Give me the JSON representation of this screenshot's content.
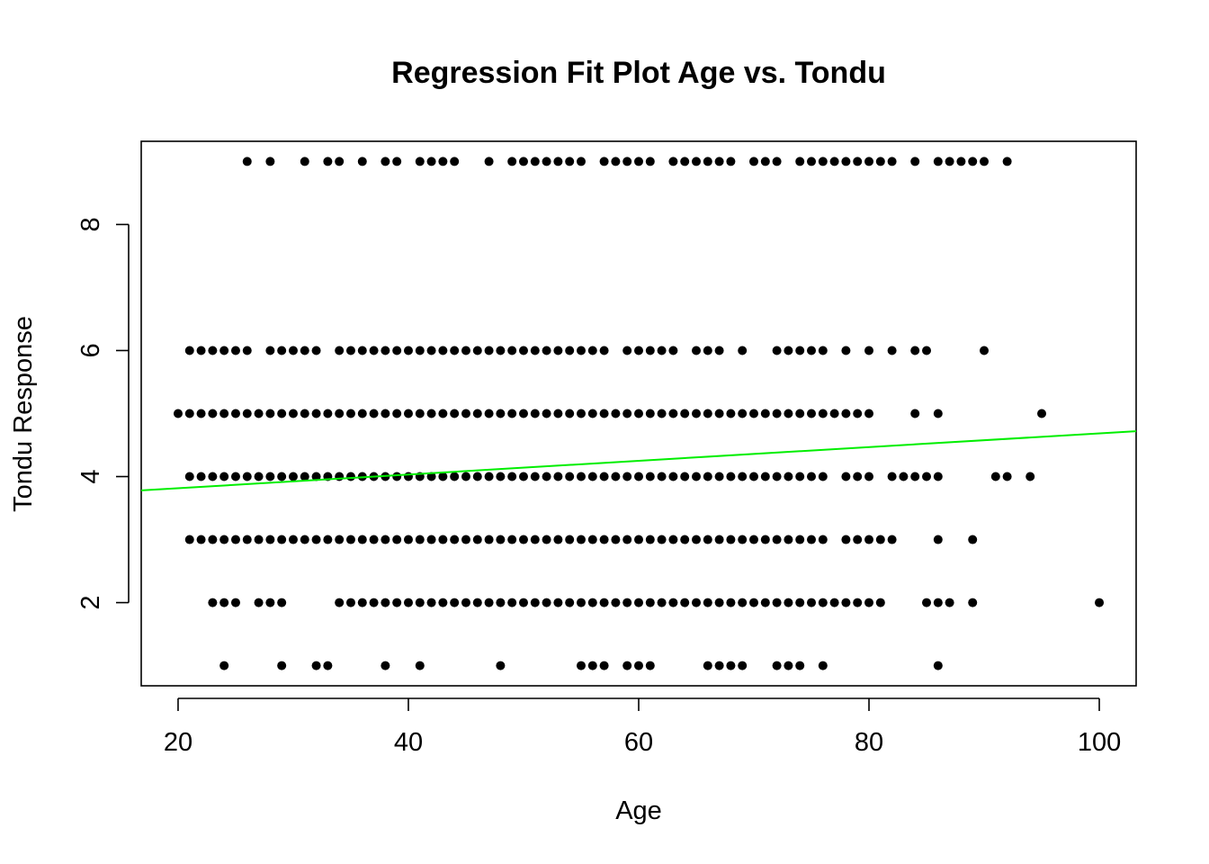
{
  "chart_data": {
    "type": "scatter",
    "title": "Regression Fit Plot Age vs. Tondu",
    "xlabel": "Age",
    "ylabel": "Tondu Response",
    "xlim": [
      16.8,
      103.2
    ],
    "ylim": [
      0.68,
      9.32
    ],
    "x_ticks": [
      20,
      40,
      60,
      80,
      100
    ],
    "y_ticks": [
      2,
      4,
      6,
      8
    ],
    "grid": false,
    "legend": "none",
    "point_color": "#000000",
    "fit_line": {
      "color": "#00ee00",
      "x": [
        16.8,
        103.2
      ],
      "y": [
        3.78,
        4.72
      ]
    },
    "rows": [
      {
        "y": 9,
        "x": [
          26,
          28,
          31,
          33,
          34,
          36,
          38,
          39,
          41,
          42,
          43,
          44,
          47,
          49,
          50,
          51,
          52,
          53,
          54,
          55,
          57,
          58,
          59,
          60,
          61,
          63,
          64,
          65,
          66,
          67,
          68,
          70,
          71,
          72,
          74,
          75,
          76,
          77,
          78,
          79,
          80,
          81,
          82,
          84,
          86,
          87,
          88,
          89,
          90,
          92
        ]
      },
      {
        "y": 6,
        "x": [
          21,
          22,
          23,
          24,
          25,
          26,
          28,
          29,
          30,
          31,
          32,
          34,
          35,
          36,
          37,
          38,
          39,
          40,
          41,
          42,
          43,
          44,
          45,
          46,
          47,
          48,
          49,
          50,
          51,
          52,
          53,
          54,
          55,
          56,
          57,
          59,
          60,
          61,
          62,
          63,
          65,
          66,
          67,
          69,
          72,
          73,
          74,
          75,
          76,
          78,
          80,
          82,
          84,
          85,
          90
        ]
      },
      {
        "y": 5,
        "x": [
          20,
          21,
          22,
          23,
          24,
          25,
          26,
          27,
          28,
          29,
          30,
          31,
          32,
          33,
          34,
          35,
          36,
          37,
          38,
          39,
          40,
          41,
          42,
          43,
          44,
          45,
          46,
          47,
          48,
          49,
          50,
          51,
          52,
          53,
          54,
          55,
          56,
          57,
          58,
          59,
          60,
          61,
          62,
          63,
          64,
          65,
          66,
          67,
          68,
          69,
          70,
          71,
          72,
          73,
          74,
          75,
          76,
          77,
          78,
          79,
          80,
          84,
          86,
          95
        ]
      },
      {
        "y": 4,
        "x": [
          21,
          22,
          23,
          24,
          25,
          26,
          27,
          28,
          29,
          30,
          31,
          32,
          33,
          34,
          35,
          36,
          37,
          38,
          39,
          40,
          41,
          42,
          43,
          44,
          45,
          46,
          47,
          48,
          49,
          50,
          51,
          52,
          53,
          54,
          55,
          56,
          57,
          58,
          59,
          60,
          61,
          62,
          63,
          64,
          65,
          66,
          67,
          68,
          69,
          70,
          71,
          72,
          73,
          74,
          75,
          76,
          78,
          79,
          80,
          82,
          83,
          84,
          85,
          86,
          91,
          92,
          94
        ]
      },
      {
        "y": 3,
        "x": [
          21,
          22,
          23,
          24,
          25,
          26,
          27,
          28,
          29,
          30,
          31,
          32,
          33,
          34,
          35,
          36,
          37,
          38,
          39,
          40,
          41,
          42,
          43,
          44,
          45,
          46,
          47,
          48,
          49,
          50,
          51,
          52,
          53,
          54,
          55,
          56,
          57,
          58,
          59,
          60,
          61,
          62,
          63,
          64,
          65,
          66,
          67,
          68,
          69,
          70,
          71,
          72,
          73,
          74,
          75,
          76,
          78,
          79,
          80,
          81,
          82,
          86,
          89
        ]
      },
      {
        "y": 2,
        "x": [
          23,
          24,
          25,
          27,
          28,
          29,
          34,
          35,
          36,
          37,
          38,
          39,
          40,
          41,
          42,
          43,
          44,
          45,
          46,
          47,
          48,
          49,
          50,
          51,
          52,
          53,
          54,
          55,
          56,
          57,
          58,
          59,
          60,
          61,
          62,
          63,
          64,
          65,
          66,
          67,
          68,
          69,
          70,
          71,
          72,
          73,
          74,
          75,
          76,
          77,
          78,
          79,
          80,
          81,
          85,
          86,
          87,
          89,
          100
        ]
      },
      {
        "y": 1,
        "x": [
          24,
          29,
          32,
          33,
          38,
          41,
          48,
          55,
          56,
          57,
          59,
          60,
          61,
          66,
          67,
          68,
          69,
          72,
          73,
          74,
          76,
          86
        ]
      }
    ]
  }
}
